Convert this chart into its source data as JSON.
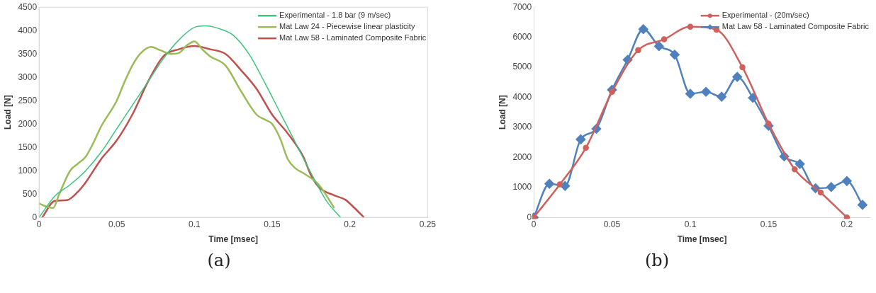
{
  "chart_data": [
    {
      "type": "line",
      "xlabel": "Time [msec]",
      "ylabel": "Load [N]",
      "annotations": [
        "(a)"
      ],
      "xlim": [
        0,
        0.25
      ],
      "xticks": [
        0,
        0.05,
        0.1,
        0.15,
        0.2,
        0.25
      ],
      "ylim": [
        0,
        4500
      ],
      "yticks": [
        0,
        500,
        1000,
        1500,
        2000,
        2500,
        3000,
        3500,
        4000,
        4500
      ],
      "grid": false,
      "legend": "top right",
      "marker": "none",
      "line_style": "solid",
      "series": [
        {
          "name": "Experimental - 1.8 bar (9 m/sec)",
          "color": "#3cc47c",
          "x": [
            0,
            0.01,
            0.02,
            0.03,
            0.04,
            0.05,
            0.06,
            0.07,
            0.08,
            0.09,
            0.1,
            0.107,
            0.115,
            0.125,
            0.135,
            0.145,
            0.155,
            0.165,
            0.175,
            0.185,
            0.194
          ],
          "values": [
            0,
            450,
            700,
            1000,
            1400,
            1900,
            2400,
            2900,
            3400,
            3800,
            4070,
            4100,
            4050,
            3900,
            3500,
            2900,
            2250,
            1600,
            950,
            350,
            0
          ]
        },
        {
          "name": "Mat Law 24 - Piecewise linear plasticity",
          "color": "#9bbb59",
          "x": [
            0,
            0.005,
            0.009,
            0.013,
            0.02,
            0.025,
            0.03,
            0.035,
            0.04,
            0.05,
            0.055,
            0.06,
            0.065,
            0.072,
            0.078,
            0.085,
            0.09,
            0.095,
            0.1,
            0.105,
            0.11,
            0.12,
            0.13,
            0.14,
            0.145,
            0.15,
            0.155,
            0.16,
            0.165,
            0.17,
            0.18,
            0.19
          ],
          "values": [
            300,
            230,
            200,
            500,
            1000,
            1150,
            1300,
            1600,
            1950,
            2500,
            2900,
            3250,
            3500,
            3650,
            3580,
            3500,
            3520,
            3680,
            3770,
            3600,
            3450,
            3250,
            2700,
            2200,
            2100,
            2000,
            1700,
            1250,
            1050,
            950,
            700,
            200
          ]
        },
        {
          "name": "Mat Law 58 - Laminated Composite Fabric",
          "color": "#c0504d",
          "x": [
            0.002,
            0.01,
            0.018,
            0.025,
            0.03,
            0.04,
            0.05,
            0.06,
            0.07,
            0.08,
            0.09,
            0.1,
            0.11,
            0.12,
            0.13,
            0.14,
            0.15,
            0.16,
            0.17,
            0.175,
            0.18,
            0.19,
            0.197,
            0.203,
            0.209
          ],
          "values": [
            0,
            350,
            370,
            550,
            750,
            1250,
            1650,
            2200,
            2900,
            3450,
            3600,
            3670,
            3600,
            3500,
            3150,
            2750,
            2200,
            1800,
            1300,
            900,
            650,
            470,
            380,
            200,
            0
          ]
        }
      ]
    },
    {
      "type": "line",
      "xlabel": "Time [msec]",
      "ylabel": "Load [N]",
      "annotations": [
        "(b)"
      ],
      "xlim": [
        0,
        0.215
      ],
      "xticks": [
        0,
        0.05,
        0.1,
        0.15,
        0.2
      ],
      "ylim": [
        0,
        7000
      ],
      "yticks": [
        0,
        1000,
        2000,
        3000,
        4000,
        5000,
        6000,
        7000
      ],
      "grid": false,
      "legend": "top right",
      "line_style": "solid",
      "series": [
        {
          "name": "Experimental - (20m/sec)",
          "color": "#d0605c",
          "marker": "circle",
          "x": [
            0,
            0.0167,
            0.0333,
            0.05,
            0.0667,
            0.0833,
            0.1,
            0.1167,
            0.1333,
            0.15,
            0.1667,
            0.1833,
            0.2
          ],
          "values": [
            0,
            1100,
            2320,
            4180,
            5570,
            5930,
            6350,
            6250,
            5000,
            3120,
            1600,
            830,
            0
          ]
        },
        {
          "name": "Mat Law 58 - Laminated Composite Fabric",
          "color": "#4f81bd",
          "marker": "diamond",
          "x": [
            0,
            0.01,
            0.02,
            0.03,
            0.04,
            0.05,
            0.06,
            0.07,
            0.08,
            0.09,
            0.1,
            0.11,
            0.12,
            0.13,
            0.14,
            0.15,
            0.16,
            0.17,
            0.18,
            0.19,
            0.2,
            0.21
          ],
          "values": [
            0,
            1120,
            1050,
            2600,
            2950,
            4250,
            5250,
            6270,
            5700,
            5420,
            4120,
            4180,
            4020,
            4680,
            3980,
            3050,
            2030,
            1780,
            970,
            1010,
            1210,
            420
          ]
        }
      ]
    }
  ]
}
